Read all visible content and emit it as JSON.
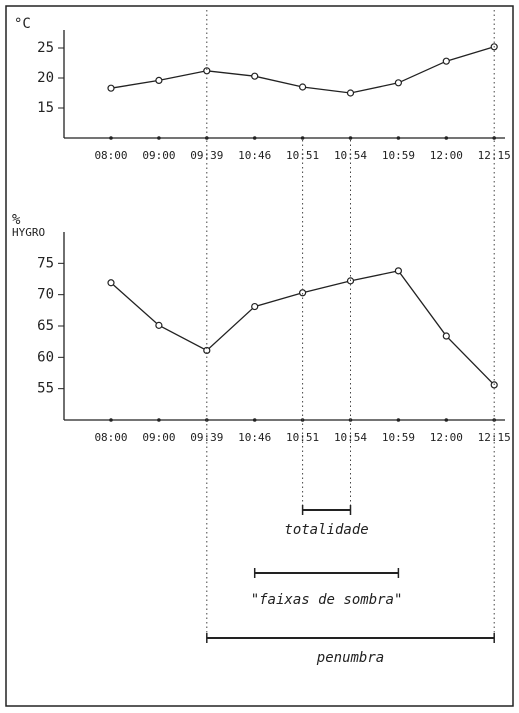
{
  "chart_data": [
    {
      "type": "line",
      "ylabel": "°C",
      "categories": [
        "08:00",
        "09:00",
        "09:39",
        "10:46",
        "10:51",
        "10:54",
        "10:59",
        "12:00",
        "12:15"
      ],
      "values": [
        18.3,
        19.6,
        21.2,
        20.3,
        18.5,
        17.5,
        19.2,
        22.8,
        25.2
      ],
      "color": "#222222",
      "ylim": [
        10,
        28
      ],
      "yticks": [
        15,
        20,
        25
      ]
    },
    {
      "type": "line",
      "ylabel": [
        "%",
        "HYGRO"
      ],
      "categories": [
        "08:00",
        "09:00",
        "09:39",
        "10:46",
        "10:51",
        "10:54",
        "10:59",
        "12:00",
        "12:15"
      ],
      "values": [
        71.9,
        65.1,
        61.1,
        68.1,
        70.3,
        72.2,
        73.8,
        63.4,
        55.6
      ],
      "color": "#222222",
      "ylim": [
        50,
        80
      ],
      "yticks": [
        55,
        60,
        65,
        70,
        75
      ],
      "annotations": [
        {
          "label": "totalidade",
          "from": "10:51",
          "to": "10:54",
          "guide_lines": true
        },
        {
          "label": "\"faixas de sombra\"",
          "from": "10:46",
          "to": "10:59",
          "guide_lines": false
        },
        {
          "label": "penumbra",
          "from": "09:39",
          "to": "12:15",
          "guide_lines": true
        }
      ]
    }
  ]
}
